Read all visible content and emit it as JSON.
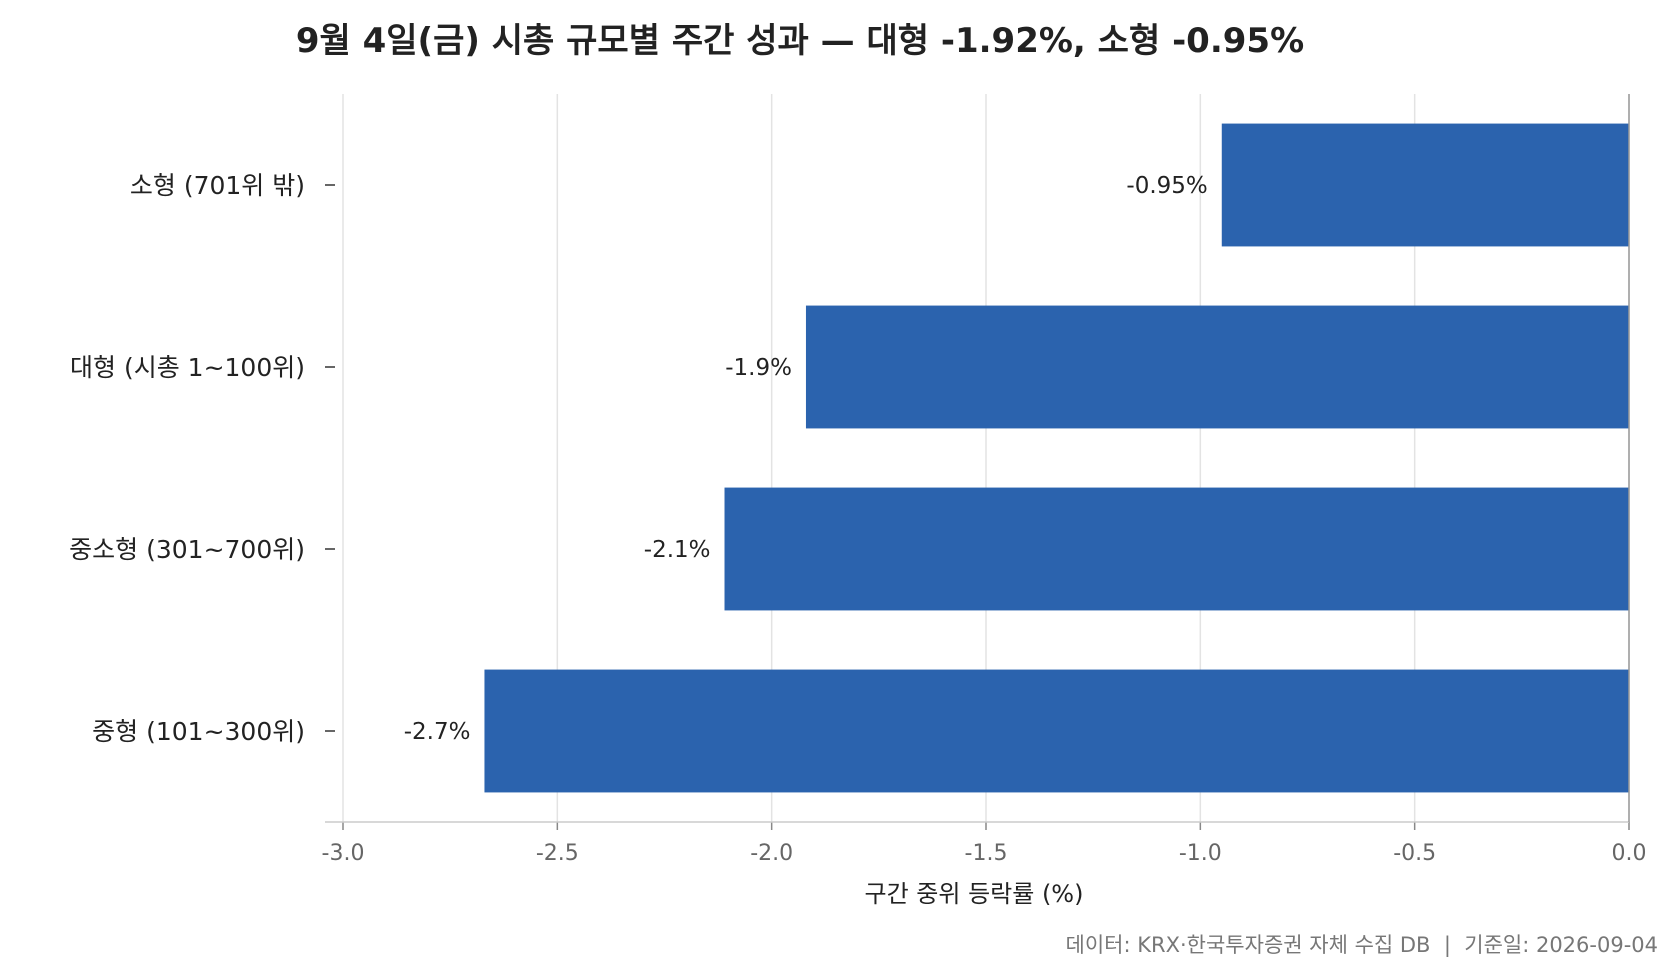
{
  "chart_data": {
    "type": "bar",
    "orientation": "horizontal",
    "title": "9월 4일(금) 시총 규모별 주간 성과 — 대형 -1.92%, 소형 -0.95%",
    "categories": [
      "소형 (701위 밖)",
      "대형 (시총 1~100위)",
      "중소형 (301~700위)",
      "중형 (101~300위)"
    ],
    "values": [
      -0.95,
      -1.92,
      -2.11,
      -2.67
    ],
    "data_labels": [
      "-0.95%",
      "-1.9%",
      "-2.1%",
      "-2.7%"
    ],
    "xlabel": "구간 중위 등락률 (%)",
    "ylabel": "",
    "xlim": [
      -3.0,
      0.0
    ],
    "xticks": [
      -3.0,
      -2.5,
      -2.0,
      -1.5,
      -1.0,
      -0.5,
      0.0
    ],
    "xtick_labels": [
      "-3.0",
      "-2.5",
      "-2.0",
      "-1.5",
      "-1.0",
      "-0.5",
      "0.0"
    ],
    "grid": "vertical",
    "bar_color": "#2b63ae",
    "footer": "데이터: KRX·한국투자증권 자체 수집 DB  |  기준일: 2026-09-04"
  }
}
